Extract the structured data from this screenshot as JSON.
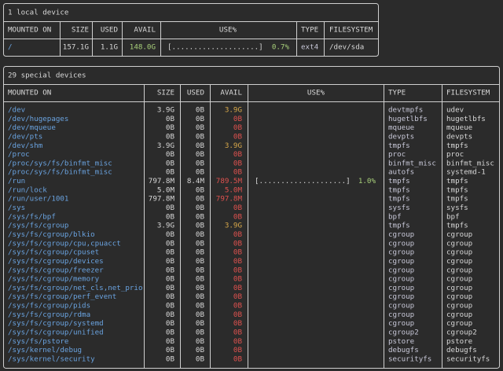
{
  "local": {
    "title": "1 local device",
    "headers": [
      "MOUNTED ON",
      "SIZE",
      "USED",
      "AVAIL",
      "USE%",
      "TYPE",
      "FILESYSTEM"
    ],
    "rows": [
      {
        "mounted_on": "/",
        "size": "157.1G",
        "used": "1.1G",
        "avail": "148.0G",
        "avail_color": "#a8d07a",
        "use_bar": "[....................]",
        "use_percent": "0.7%",
        "type": "ext4",
        "filesystem": "/dev/sda"
      }
    ]
  },
  "special": {
    "title": "29 special devices",
    "headers": [
      "MOUNTED ON",
      "SIZE",
      "USED",
      "AVAIL",
      "USE%",
      "TYPE",
      "FILESYSTEM"
    ],
    "rows": [
      {
        "mounted_on": "/dev",
        "size": "3.9G",
        "used": "0B",
        "avail": "3.9G",
        "avail_color": "#d9a94a",
        "type": "devtmpfs",
        "filesystem": "udev"
      },
      {
        "mounted_on": "/dev/hugepages",
        "size": "0B",
        "used": "0B",
        "avail": "0B",
        "avail_color": "#e0524f",
        "type": "hugetlbfs",
        "filesystem": "hugetlbfs"
      },
      {
        "mounted_on": "/dev/mqueue",
        "size": "0B",
        "used": "0B",
        "avail": "0B",
        "avail_color": "#e0524f",
        "type": "mqueue",
        "filesystem": "mqueue"
      },
      {
        "mounted_on": "/dev/pts",
        "size": "0B",
        "used": "0B",
        "avail": "0B",
        "avail_color": "#e0524f",
        "type": "devpts",
        "filesystem": "devpts"
      },
      {
        "mounted_on": "/dev/shm",
        "size": "3.9G",
        "used": "0B",
        "avail": "3.9G",
        "avail_color": "#d9a94a",
        "type": "tmpfs",
        "filesystem": "tmpfs"
      },
      {
        "mounted_on": "/proc",
        "size": "0B",
        "used": "0B",
        "avail": "0B",
        "avail_color": "#e0524f",
        "type": "proc",
        "filesystem": "proc"
      },
      {
        "mounted_on": "/proc/sys/fs/binfmt_misc",
        "size": "0B",
        "used": "0B",
        "avail": "0B",
        "avail_color": "#e0524f",
        "type": "binfmt_misc",
        "filesystem": "binfmt_misc"
      },
      {
        "mounted_on": "/proc/sys/fs/binfmt_misc",
        "size": "0B",
        "used": "0B",
        "avail": "0B",
        "avail_color": "#e0524f",
        "type": "autofs",
        "filesystem": "systemd-1"
      },
      {
        "mounted_on": "/run",
        "size": "797.8M",
        "used": "8.4M",
        "avail": "789.5M",
        "avail_color": "#e0524f",
        "use_bar": "[....................]",
        "use_percent": "1.0%",
        "type": "tmpfs",
        "filesystem": "tmpfs"
      },
      {
        "mounted_on": "/run/lock",
        "size": "5.0M",
        "used": "0B",
        "avail": "5.0M",
        "avail_color": "#e0524f",
        "type": "tmpfs",
        "filesystem": "tmpfs"
      },
      {
        "mounted_on": "/run/user/1001",
        "size": "797.8M",
        "used": "0B",
        "avail": "797.8M",
        "avail_color": "#e0524f",
        "type": "tmpfs",
        "filesystem": "tmpfs"
      },
      {
        "mounted_on": "/sys",
        "size": "0B",
        "used": "0B",
        "avail": "0B",
        "avail_color": "#e0524f",
        "type": "sysfs",
        "filesystem": "sysfs"
      },
      {
        "mounted_on": "/sys/fs/bpf",
        "size": "0B",
        "used": "0B",
        "avail": "0B",
        "avail_color": "#e0524f",
        "type": "bpf",
        "filesystem": "bpf"
      },
      {
        "mounted_on": "/sys/fs/cgroup",
        "size": "3.9G",
        "used": "0B",
        "avail": "3.9G",
        "avail_color": "#d9a94a",
        "type": "tmpfs",
        "filesystem": "tmpfs"
      },
      {
        "mounted_on": "/sys/fs/cgroup/blkio",
        "size": "0B",
        "used": "0B",
        "avail": "0B",
        "avail_color": "#e0524f",
        "type": "cgroup",
        "filesystem": "cgroup"
      },
      {
        "mounted_on": "/sys/fs/cgroup/cpu,cpuacct",
        "size": "0B",
        "used": "0B",
        "avail": "0B",
        "avail_color": "#e0524f",
        "type": "cgroup",
        "filesystem": "cgroup"
      },
      {
        "mounted_on": "/sys/fs/cgroup/cpuset",
        "size": "0B",
        "used": "0B",
        "avail": "0B",
        "avail_color": "#e0524f",
        "type": "cgroup",
        "filesystem": "cgroup"
      },
      {
        "mounted_on": "/sys/fs/cgroup/devices",
        "size": "0B",
        "used": "0B",
        "avail": "0B",
        "avail_color": "#e0524f",
        "type": "cgroup",
        "filesystem": "cgroup"
      },
      {
        "mounted_on": "/sys/fs/cgroup/freezer",
        "size": "0B",
        "used": "0B",
        "avail": "0B",
        "avail_color": "#e0524f",
        "type": "cgroup",
        "filesystem": "cgroup"
      },
      {
        "mounted_on": "/sys/fs/cgroup/memory",
        "size": "0B",
        "used": "0B",
        "avail": "0B",
        "avail_color": "#e0524f",
        "type": "cgroup",
        "filesystem": "cgroup"
      },
      {
        "mounted_on": "/sys/fs/cgroup/net_cls,net_prio",
        "size": "0B",
        "used": "0B",
        "avail": "0B",
        "avail_color": "#e0524f",
        "type": "cgroup",
        "filesystem": "cgroup"
      },
      {
        "mounted_on": "/sys/fs/cgroup/perf_event",
        "size": "0B",
        "used": "0B",
        "avail": "0B",
        "avail_color": "#e0524f",
        "type": "cgroup",
        "filesystem": "cgroup"
      },
      {
        "mounted_on": "/sys/fs/cgroup/pids",
        "size": "0B",
        "used": "0B",
        "avail": "0B",
        "avail_color": "#e0524f",
        "type": "cgroup",
        "filesystem": "cgroup"
      },
      {
        "mounted_on": "/sys/fs/cgroup/rdma",
        "size": "0B",
        "used": "0B",
        "avail": "0B",
        "avail_color": "#e0524f",
        "type": "cgroup",
        "filesystem": "cgroup"
      },
      {
        "mounted_on": "/sys/fs/cgroup/systemd",
        "size": "0B",
        "used": "0B",
        "avail": "0B",
        "avail_color": "#e0524f",
        "type": "cgroup",
        "filesystem": "cgroup"
      },
      {
        "mounted_on": "/sys/fs/cgroup/unified",
        "size": "0B",
        "used": "0B",
        "avail": "0B",
        "avail_color": "#e0524f",
        "type": "cgroup2",
        "filesystem": "cgroup2"
      },
      {
        "mounted_on": "/sys/fs/pstore",
        "size": "0B",
        "used": "0B",
        "avail": "0B",
        "avail_color": "#e0524f",
        "type": "pstore",
        "filesystem": "pstore"
      },
      {
        "mounted_on": "/sys/kernel/debug",
        "size": "0B",
        "used": "0B",
        "avail": "0B",
        "avail_color": "#e0524f",
        "type": "debugfs",
        "filesystem": "debugfs"
      },
      {
        "mounted_on": "/sys/kernel/security",
        "size": "0B",
        "used": "0B",
        "avail": "0B",
        "avail_color": "#e0524f",
        "type": "securityfs",
        "filesystem": "securityfs"
      }
    ]
  }
}
